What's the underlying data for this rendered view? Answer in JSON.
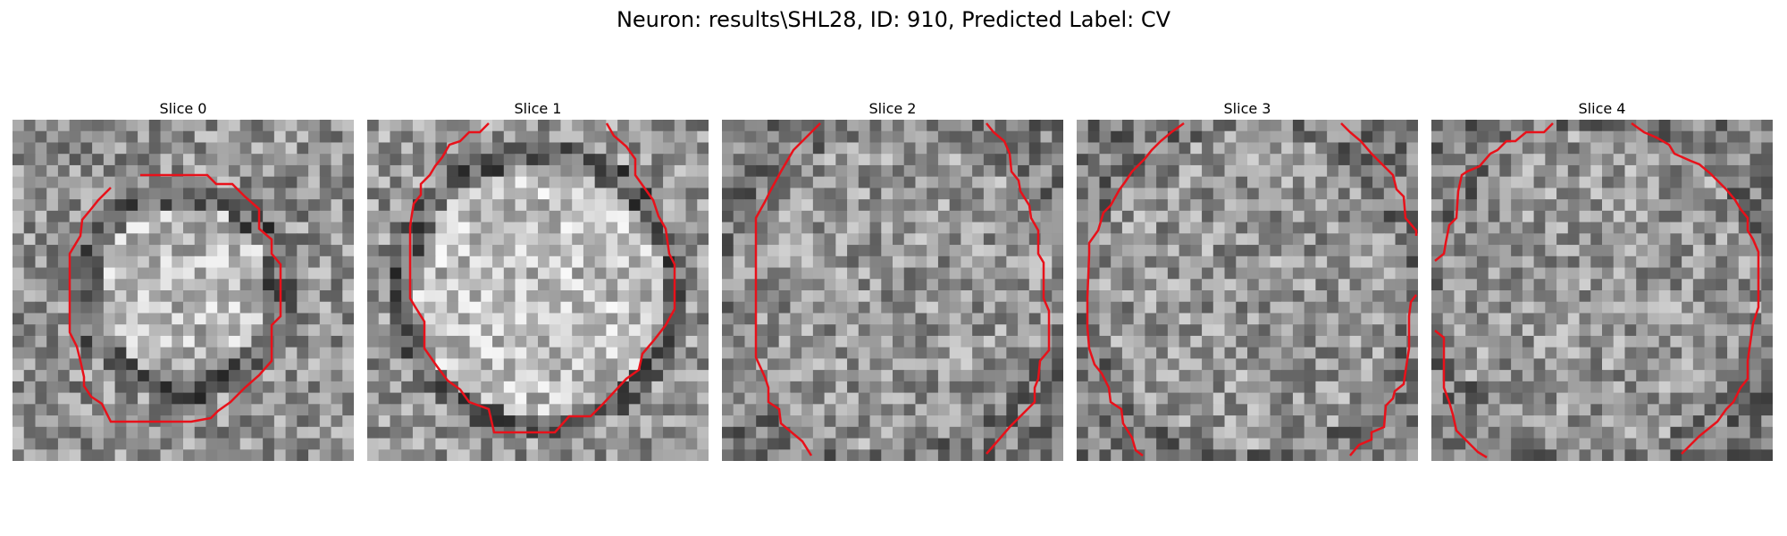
{
  "figure": {
    "title": "Neuron: results\\SHL28, ID: 910, Predicted Label: CV",
    "panels": [
      {
        "title": "Slice 0"
      },
      {
        "title": "Slice 1"
      },
      {
        "title": "Slice 2"
      },
      {
        "title": "Slice 3"
      },
      {
        "title": "Slice 4"
      }
    ],
    "colors": {
      "contour": "#e8111a",
      "background": "#ffffff"
    }
  }
}
